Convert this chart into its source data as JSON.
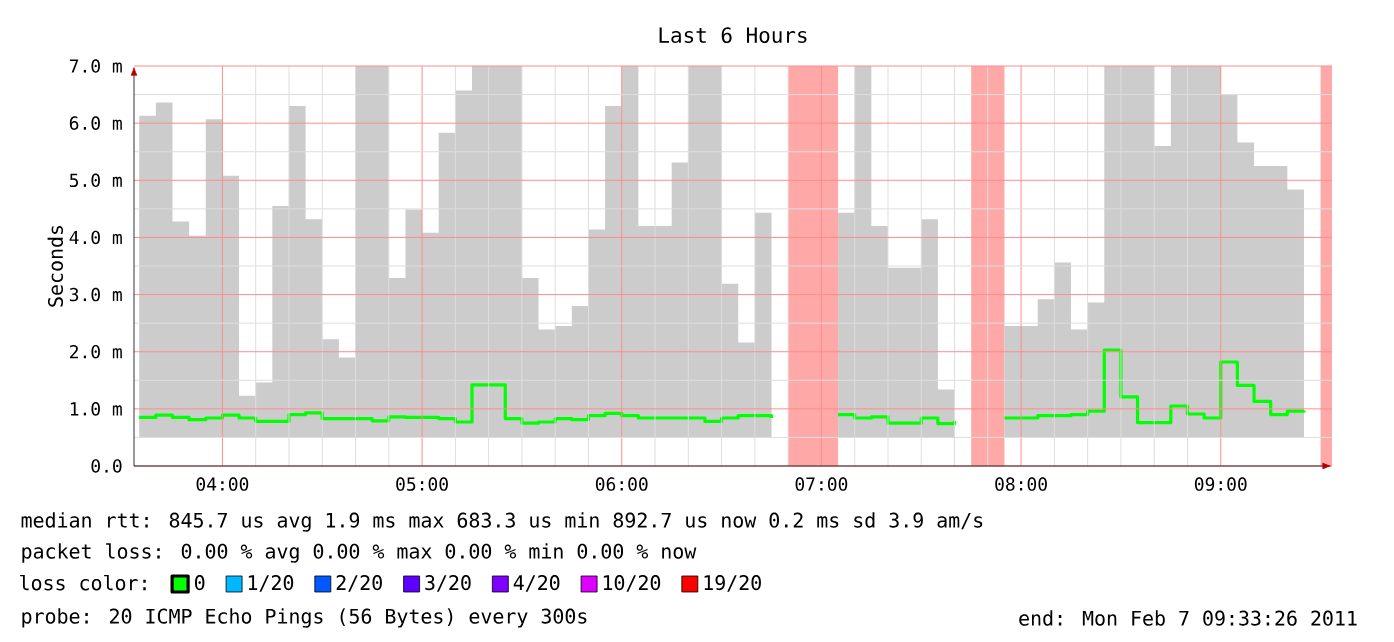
{
  "chart_data": {
    "type": "step",
    "title": "Last 6 Hours",
    "ylabel": "Seconds",
    "x": [
      3.5833,
      3.6667,
      3.75,
      3.8333,
      3.9167,
      4,
      4.0833,
      4.1667,
      4.25,
      4.3333,
      4.4167,
      4.5,
      4.5833,
      4.6667,
      4.75,
      4.8333,
      4.9167,
      5,
      5.0833,
      5.1667,
      5.25,
      5.3333,
      5.4167,
      5.5,
      5.5833,
      5.6667,
      5.75,
      5.8333,
      5.9167,
      6,
      6.0833,
      6.1667,
      6.25,
      6.3333,
      6.4167,
      6.5,
      6.5833,
      6.6667,
      6.75,
      6.8333,
      6.9167,
      7,
      7.0833,
      7.1667,
      7.25,
      7.3333,
      7.4167,
      7.5,
      7.5833,
      7.6667,
      7.75,
      7.8333,
      7.9167,
      8,
      8.0833,
      8.1667,
      8.25,
      8.3333,
      8.4167,
      8.5,
      8.5833,
      8.6667,
      8.75,
      8.8333,
      8.9167,
      9,
      9.0833,
      9.1667,
      9.25,
      9.3333,
      9.4167
    ],
    "series": [
      {
        "name": "0",
        "color": "#00ff00",
        "values": [
          0.85,
          0.89,
          0.85,
          0.81,
          0.84,
          0.89,
          0.84,
          0.78,
          0.78,
          0.9,
          0.93,
          0.83,
          0.83,
          0.83,
          0.79,
          0.86,
          0.85,
          0.85,
          0.83,
          0.77,
          1.42,
          1.42,
          0.83,
          0.75,
          0.77,
          0.83,
          0.81,
          0.88,
          0.92,
          0.88,
          0.84,
          0.84,
          0.84,
          0.84,
          0.78,
          0.84,
          0.88,
          0.88,
          0.84,
          null,
          null,
          null,
          0.9,
          0.84,
          0.86,
          0.75,
          0.75,
          0.84,
          0.74,
          0.79,
          null,
          null,
          0.84,
          0.84,
          0.88,
          0.88,
          0.9,
          0.96,
          2.03,
          1.21,
          0.76,
          0.76,
          1.05,
          0.91,
          0.84,
          1.82,
          1.41,
          1.13,
          0.9,
          0.96,
          0.97
        ],
        "lower": [
          0.5,
          0.5,
          0.5,
          0.5,
          0.5,
          0.5,
          0.5,
          0.5,
          0.5,
          0.5,
          0.5,
          0.5,
          0.5,
          0.5,
          0.5,
          0.5,
          0.5,
          0.5,
          0.5,
          0.5,
          0.5,
          0.5,
          0.5,
          0.5,
          0.5,
          0.5,
          0.5,
          0.5,
          0.5,
          0.5,
          0.5,
          0.5,
          0.5,
          0.5,
          0.5,
          0.5,
          0.5,
          0.5,
          0.5,
          null,
          null,
          null,
          0.5,
          0.5,
          0.5,
          0.5,
          0.5,
          0.5,
          0.5,
          0.5,
          null,
          null,
          0.5,
          0.5,
          0.5,
          0.5,
          0.5,
          0.5,
          0.5,
          0.5,
          0.5,
          0.5,
          0.5,
          0.5,
          0.5,
          0.5,
          0.5,
          0.5,
          0.5,
          0.5,
          0.5
        ],
        "upper": [
          6.13,
          6.36,
          4.28,
          4.03,
          6.07,
          5.08,
          1.23,
          1.46,
          4.55,
          6.3,
          4.32,
          2.22,
          1.9,
          7,
          7,
          3.29,
          4.49,
          4.08,
          5.83,
          6.57,
          7,
          7,
          7,
          3.29,
          2.39,
          2.45,
          2.8,
          4.14,
          6.3,
          7,
          4.2,
          4.2,
          5.31,
          7,
          7,
          3.19,
          2.16,
          4.43,
          6.36,
          null,
          null,
          null,
          4.43,
          7,
          4.2,
          3.47,
          3.47,
          4.32,
          1.34,
          2.63,
          null,
          null,
          2.45,
          2.45,
          2.92,
          3.56,
          2.39,
          2.86,
          7,
          7,
          7,
          5.6,
          7,
          7,
          7,
          6.5,
          5.66,
          5.25,
          5.25,
          4.84,
          4.49
        ]
      },
      {
        "name": "1/20",
        "color": "#00b8ff",
        "values": [
          null,
          null,
          null,
          null,
          null,
          null,
          null,
          null,
          null,
          null,
          null,
          null,
          null,
          null,
          null,
          null,
          null,
          null,
          null,
          null,
          null,
          null,
          null,
          null,
          null,
          null,
          null,
          null,
          null,
          null,
          null,
          null,
          null,
          null,
          null,
          null,
          null,
          null,
          null,
          null,
          null,
          null,
          null,
          null,
          null,
          null,
          null,
          null,
          null,
          null,
          null,
          null,
          null,
          null,
          null,
          null,
          null,
          null,
          null,
          null,
          null,
          null,
          null,
          null,
          null,
          null,
          null,
          null,
          null,
          null,
          null
        ]
      },
      {
        "name": "2/20",
        "color": "#0059ff",
        "values": [
          null,
          null,
          null,
          null,
          null,
          null,
          null,
          null,
          null,
          null,
          null,
          null,
          null,
          null,
          null,
          null,
          null,
          null,
          null,
          null,
          null,
          null,
          null,
          null,
          null,
          null,
          null,
          null,
          null,
          null,
          null,
          null,
          null,
          null,
          null,
          null,
          null,
          null,
          null,
          null,
          null,
          null,
          null,
          null,
          null,
          null,
          null,
          null,
          null,
          null,
          null,
          null,
          null,
          null,
          null,
          null,
          null,
          null,
          null,
          null,
          null,
          null,
          null,
          null,
          null,
          null,
          null,
          null,
          null,
          null,
          null
        ]
      },
      {
        "name": "3/20",
        "color": "#5e00ff",
        "values": [
          null,
          null,
          null,
          null,
          null,
          null,
          null,
          null,
          null,
          null,
          null,
          null,
          null,
          null,
          null,
          null,
          null,
          null,
          null,
          null,
          null,
          null,
          null,
          null,
          null,
          null,
          null,
          null,
          null,
          null,
          null,
          null,
          null,
          null,
          null,
          null,
          null,
          null,
          null,
          null,
          null,
          null,
          null,
          null,
          null,
          null,
          null,
          null,
          null,
          null,
          null,
          null,
          null,
          null,
          null,
          null,
          null,
          null,
          null,
          null,
          null,
          null,
          null,
          null,
          null,
          null,
          null,
          null,
          null,
          null,
          null
        ]
      },
      {
        "name": "4/20",
        "color": "#7e00ff",
        "values": [
          null,
          null,
          null,
          null,
          null,
          null,
          null,
          null,
          null,
          null,
          null,
          null,
          null,
          null,
          null,
          null,
          null,
          null,
          null,
          null,
          null,
          null,
          null,
          null,
          null,
          null,
          null,
          null,
          null,
          null,
          null,
          null,
          null,
          null,
          null,
          null,
          null,
          null,
          null,
          null,
          null,
          null,
          null,
          null,
          null,
          null,
          null,
          null,
          null,
          null,
          null,
          null,
          null,
          null,
          null,
          null,
          null,
          null,
          null,
          null,
          null,
          null,
          null,
          null,
          null,
          null,
          null,
          null,
          null,
          null,
          null
        ]
      },
      {
        "name": "10/20",
        "color": "#dd00ff",
        "values": [
          null,
          null,
          null,
          null,
          null,
          null,
          null,
          null,
          null,
          null,
          null,
          null,
          null,
          null,
          null,
          null,
          null,
          null,
          null,
          null,
          null,
          null,
          null,
          null,
          null,
          null,
          null,
          null,
          null,
          null,
          null,
          null,
          null,
          null,
          null,
          null,
          null,
          null,
          null,
          null,
          null,
          null,
          null,
          null,
          null,
          null,
          null,
          null,
          null,
          null,
          null,
          null,
          null,
          null,
          null,
          null,
          null,
          null,
          null,
          null,
          null,
          null,
          null,
          null,
          null,
          null,
          null,
          null,
          null,
          null,
          null
        ]
      },
      {
        "name": "19/20",
        "color": "#ff0000",
        "values": [
          null,
          null,
          null,
          null,
          null,
          null,
          null,
          null,
          null,
          null,
          null,
          null,
          null,
          null,
          null,
          null,
          null,
          null,
          null,
          null,
          null,
          null,
          null,
          null,
          null,
          null,
          null,
          null,
          null,
          null,
          null,
          null,
          null,
          null,
          null,
          null,
          null,
          null,
          null,
          null,
          null,
          null,
          null,
          null,
          null,
          null,
          null,
          null,
          null,
          null,
          null,
          null,
          null,
          null,
          null,
          null,
          null,
          null,
          null,
          null,
          null,
          null,
          null,
          null,
          null,
          null,
          null,
          null,
          null,
          null,
          null
        ]
      }
    ],
    "bands": [
      {
        "axis": "x",
        "from": 6.8333,
        "to": 7.0833,
        "color": "#ffa8a8"
      },
      {
        "axis": "x",
        "from": 7.75,
        "to": 7.9167,
        "color": "#ffa8a8"
      },
      {
        "axis": "x",
        "from": 9.5,
        "to": 9.5572,
        "color": "#ffa8a8"
      }
    ],
    "xlim": [
      3.5572,
      9.5572
    ],
    "xticks": [
      {
        "value": 4,
        "label": "04:00"
      },
      {
        "value": 5,
        "label": "05:00"
      },
      {
        "value": 6,
        "label": "06:00"
      },
      {
        "value": 7,
        "label": "07:00"
      },
      {
        "value": 8,
        "label": "08:00"
      },
      {
        "value": 9,
        "label": "09:00"
      }
    ],
    "ylim": [
      0,
      7
    ],
    "yticks": [
      {
        "value": 0,
        "label": "0.0"
      },
      {
        "value": 1,
        "label": "1.0 m"
      },
      {
        "value": 2,
        "label": "2.0 m"
      },
      {
        "value": 3,
        "label": "3.0 m"
      },
      {
        "value": 4,
        "label": "4.0 m"
      },
      {
        "value": 5,
        "label": "5.0 m"
      },
      {
        "value": 6,
        "label": "6.0 m"
      },
      {
        "value": 7,
        "label": "7.0 m"
      }
    ],
    "grid": true,
    "legend": "bottom",
    "legend_title": "loss color:",
    "annotations": [
      "median rtt:  845.7 us avg  1.9 ms max  683.3 us min  892.7 us now  0.2 ms sd  3.9   am/s",
      "packet loss: 0.00 % avg  0.00 % max  0.00 % min  0.00 % now",
      "probe:        20 ICMP Echo Pings (56 Bytes) every 300s",
      "end: Mon Feb  7 09:33:26 2011"
    ]
  }
}
